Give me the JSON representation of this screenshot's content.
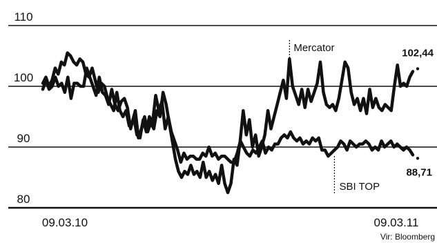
{
  "chart_data": {
    "type": "line",
    "title": "",
    "xlabel": "",
    "ylabel": "",
    "ylim": [
      80,
      110
    ],
    "yticks": [
      80,
      90,
      100,
      110
    ],
    "grid": true,
    "legend": "none",
    "x_tick_labels": [
      "09.03.10",
      "09.03.11"
    ],
    "source": "Vir: Bloomberg",
    "series": [
      {
        "name": "Mercator",
        "end_label": "102,44",
        "color": "#111111",
        "values": [
          100.5,
          101.5,
          100,
          101,
          103,
          102,
          104,
          103.5,
          105.5,
          105,
          104,
          103.5,
          104.5,
          104,
          102,
          101.5,
          103,
          101,
          99,
          100.5,
          100,
          98,
          97,
          96,
          99,
          96,
          95,
          96,
          93.5,
          94,
          96,
          91.5,
          93,
          95,
          92.5,
          94,
          93,
          96,
          95,
          99,
          97,
          94,
          91,
          88,
          86,
          85,
          86,
          85.5,
          87,
          85.5,
          86,
          85,
          87.5,
          85,
          86,
          84.5,
          85.5,
          84,
          87,
          84,
          82.5,
          84,
          88,
          87,
          91,
          96,
          92,
          94.5,
          90,
          92,
          88.5,
          90,
          92,
          96,
          93,
          95,
          97,
          99,
          101,
          98,
          104.5,
          100,
          98.5,
          97,
          99.5,
          96.5,
          99.5,
          97.5,
          99,
          100.5,
          104,
          99,
          97,
          96.5,
          97,
          96,
          98,
          101,
          104,
          103,
          99,
          97,
          98,
          96,
          98,
          95.5,
          99.5,
          96.5,
          98,
          96.5,
          96,
          97,
          96.5,
          96,
          100,
          103.5,
          100,
          100.5,
          100,
          101.5,
          102.44
        ]
      },
      {
        "name": "SBI TOP",
        "end_label": "88,71",
        "color": "#111111",
        "values": [
          99.5,
          101,
          99.5,
          100,
          101.5,
          100,
          100.5,
          99,
          101.5,
          98,
          100.5,
          100.5,
          100,
          100,
          103,
          101.5,
          100,
          98.5,
          101.5,
          99,
          98.5,
          97,
          99.5,
          97,
          96,
          97.5,
          98,
          96.5,
          93,
          95,
          92,
          91.5,
          94.5,
          92.5,
          95,
          94,
          98.5,
          96,
          97.5,
          93,
          95,
          92.5,
          91,
          89.5,
          87.5,
          89,
          88,
          88.5,
          88.5,
          88,
          88,
          89,
          88.5,
          90,
          88.5,
          89,
          88,
          88.5,
          88.5,
          88,
          87.5,
          87.5,
          89,
          91,
          90,
          89,
          88.5,
          89.5,
          89,
          90,
          91,
          89,
          90,
          89.5,
          90.5,
          90.5,
          91.5,
          92,
          91.5,
          92.5,
          91.5,
          91,
          91.5,
          90.5,
          91,
          90.5,
          91.5,
          91,
          91.5,
          89.5,
          89.5,
          88.5,
          89,
          89.5,
          90,
          91,
          90.5,
          89.5,
          91,
          90.5,
          90,
          90.5,
          90.5,
          91,
          90.5,
          89.5,
          90,
          89.5,
          91,
          90,
          90.5,
          91,
          90,
          90.5,
          90,
          89.5,
          90,
          89.5,
          88.71
        ]
      }
    ],
    "annotations": [
      {
        "text": "Mercator",
        "series": "Mercator"
      },
      {
        "text": "SBI TOP",
        "series": "SBI TOP"
      }
    ]
  }
}
